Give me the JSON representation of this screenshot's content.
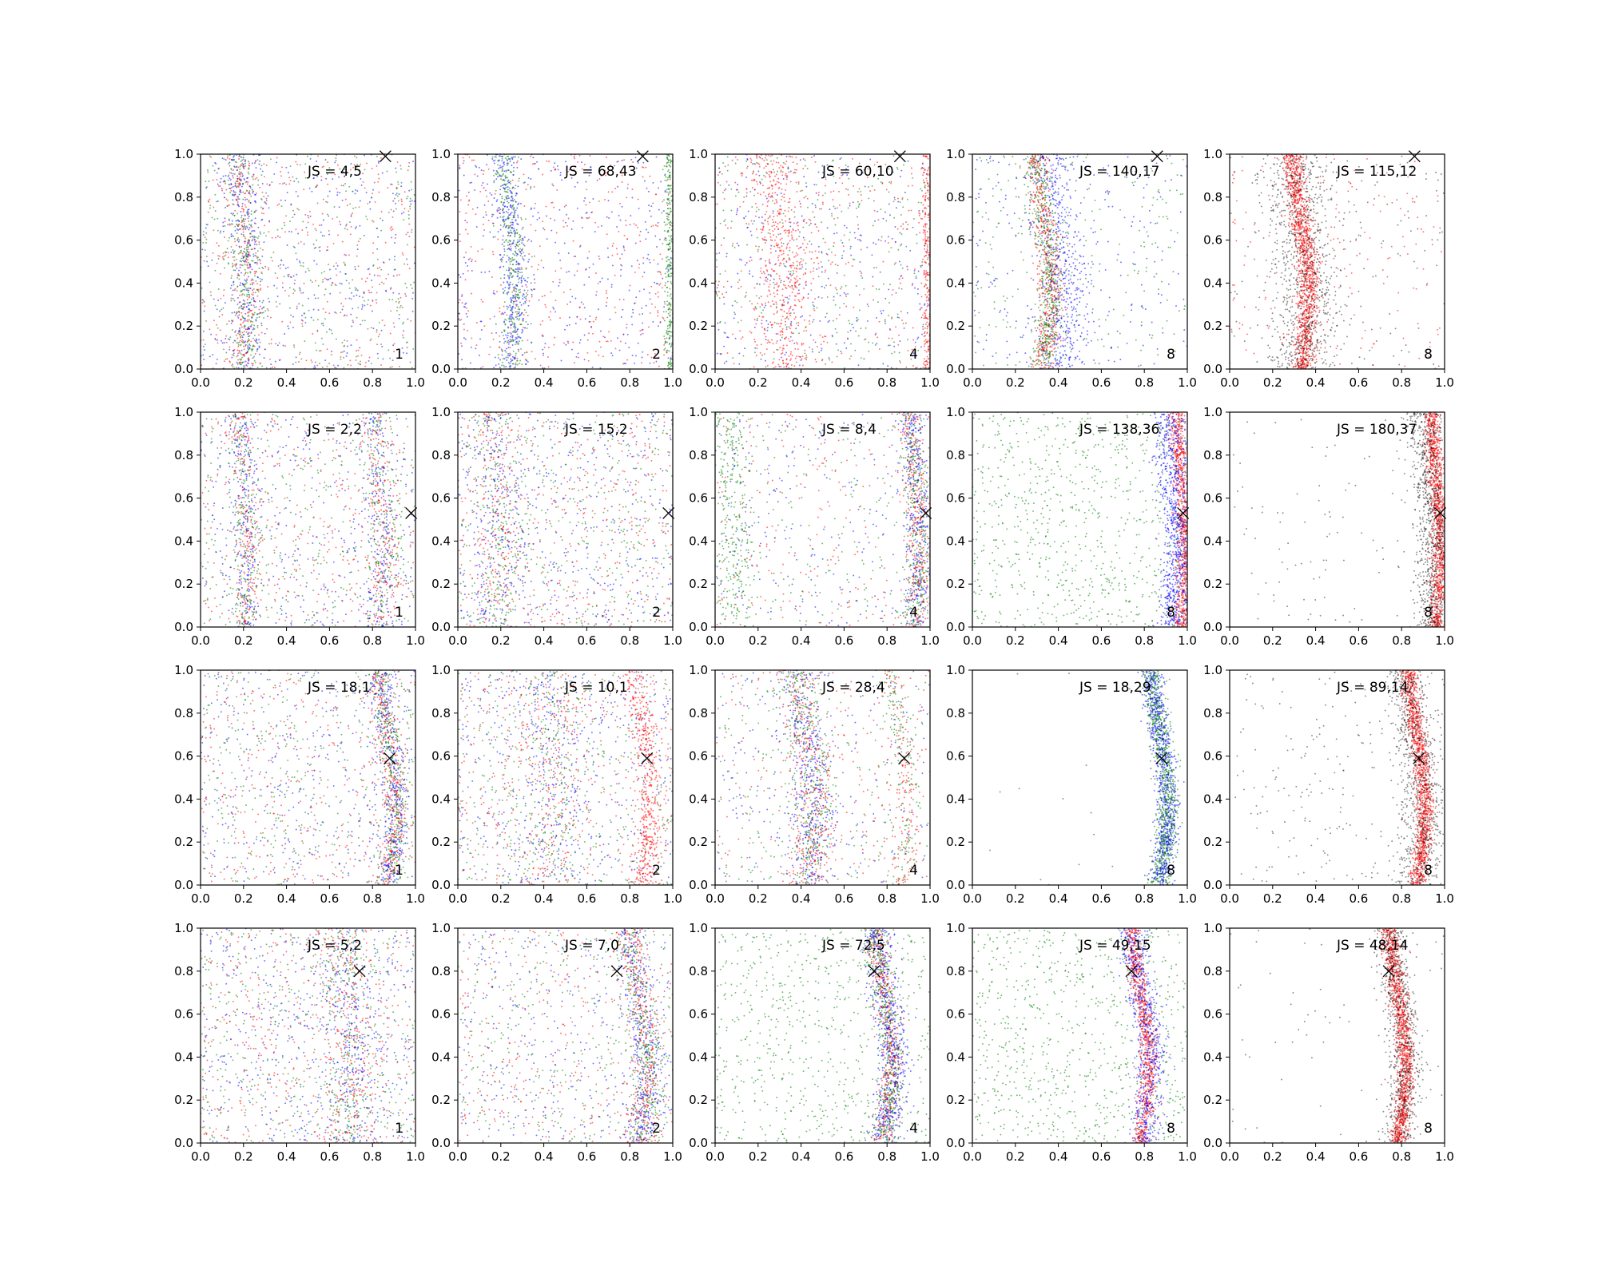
{
  "chart_data": {
    "type": "scatter",
    "rows": 4,
    "cols": 5,
    "xlim": [
      0,
      1
    ],
    "ylim": [
      0,
      1
    ],
    "xticks": [
      "0.0",
      "0.2",
      "0.4",
      "0.6",
      "0.8",
      "1.0"
    ],
    "yticks": [
      "0.0",
      "0.2",
      "0.4",
      "0.6",
      "0.8",
      "1.0"
    ],
    "grid": false,
    "colors": {
      "red": "#ff0000",
      "green": "#008000",
      "blue": "#0000ff",
      "black": "#000000"
    },
    "panels": [
      {
        "js": "JS = 4,5",
        "tag": "1",
        "marker": [
          0.86,
          0.99
        ],
        "bands": [
          {
            "cx": 0.2,
            "w": 0.04,
            "n": 800,
            "c": [
              "red",
              "green",
              "blue"
            ],
            "a": 0.02
          }
        ],
        "bg": [
          {
            "n": 1100,
            "c": [
              "red",
              "green",
              "blue"
            ]
          }
        ]
      },
      {
        "js": "JS = 68,43",
        "tag": "2",
        "marker": [
          0.86,
          0.99
        ],
        "bands": [
          {
            "cx": 0.24,
            "w": 0.03,
            "n": 700,
            "c": [
              "green",
              "blue"
            ],
            "a": 0.03
          },
          {
            "cx": 0.985,
            "w": 0.012,
            "n": 300,
            "c": [
              "green"
            ],
            "a": 0.0
          }
        ],
        "bg": [
          {
            "n": 800,
            "c": [
              "blue",
              "red"
            ]
          }
        ]
      },
      {
        "js": "JS = 60,10",
        "tag": "4",
        "marker": [
          0.86,
          0.99
        ],
        "bands": [
          {
            "cx": 0.3,
            "w": 0.06,
            "n": 500,
            "c": [
              "red"
            ],
            "a": 0.03
          },
          {
            "cx": 0.985,
            "w": 0.012,
            "n": 250,
            "c": [
              "red"
            ],
            "a": 0.0
          }
        ],
        "bg": [
          {
            "n": 1000,
            "c": [
              "blue",
              "green",
              "red"
            ]
          }
        ]
      },
      {
        "js": "JS = 140,17",
        "tag": "8",
        "marker": [
          0.86,
          0.99
        ],
        "bands": [
          {
            "cx": 0.33,
            "w": 0.03,
            "n": 1100,
            "c": [
              "red",
              "green"
            ],
            "a": 0.035
          },
          {
            "cx": 0.4,
            "w": 0.06,
            "n": 500,
            "c": [
              "blue"
            ],
            "a": 0.035
          }
        ],
        "bg": [
          {
            "n": 500,
            "c": [
              "blue",
              "green"
            ]
          }
        ]
      },
      {
        "js": "JS = 115,12",
        "tag": "8",
        "marker": [
          0.86,
          0.99
        ],
        "bands": [
          {
            "cx": 0.33,
            "w": 0.025,
            "n": 1300,
            "c": [
              "red"
            ],
            "a": 0.035
          },
          {
            "cx": 0.33,
            "w": 0.08,
            "n": 900,
            "c": [
              "black"
            ],
            "a": 0.035
          }
        ],
        "bg": [
          {
            "n": 350,
            "c": [
              "black",
              "red"
            ]
          }
        ]
      },
      {
        "js": "JS = 2,2",
        "tag": "1",
        "marker": [
          0.98,
          0.53
        ],
        "bands": [
          {
            "cx": 0.2,
            "w": 0.03,
            "n": 600,
            "c": [
              "red",
              "green",
              "blue"
            ],
            "a": 0.02
          },
          {
            "cx": 0.83,
            "w": 0.04,
            "n": 600,
            "c": [
              "red",
              "green",
              "blue"
            ],
            "a": 0.02
          }
        ],
        "bg": [
          {
            "n": 1100,
            "c": [
              "red",
              "green",
              "blue"
            ]
          }
        ]
      },
      {
        "js": "JS = 15,2",
        "tag": "2",
        "marker": [
          0.98,
          0.53
        ],
        "bands": [
          {
            "cx": 0.18,
            "w": 0.06,
            "n": 600,
            "c": [
              "red",
              "green",
              "blue"
            ],
            "a": 0.02
          }
        ],
        "bg": [
          {
            "n": 1300,
            "c": [
              "red",
              "green",
              "blue"
            ]
          }
        ]
      },
      {
        "js": "JS = 8,4",
        "tag": "4",
        "marker": [
          0.98,
          0.53
        ],
        "bands": [
          {
            "cx": 0.93,
            "w": 0.03,
            "n": 1000,
            "c": [
              "red",
              "blue",
              "green"
            ],
            "a": 0.02
          },
          {
            "cx": 0.08,
            "w": 0.04,
            "n": 300,
            "c": [
              "green"
            ],
            "a": 0.02
          }
        ],
        "bg": [
          {
            "n": 700,
            "c": [
              "blue",
              "green",
              "red"
            ]
          }
        ]
      },
      {
        "js": "JS = 138,36",
        "tag": "8",
        "marker": [
          0.98,
          0.53
        ],
        "bands": [
          {
            "cx": 0.97,
            "w": 0.02,
            "n": 900,
            "c": [
              "red"
            ],
            "a": 0.02
          },
          {
            "cx": 0.93,
            "w": 0.035,
            "n": 800,
            "c": [
              "blue"
            ],
            "a": 0.02
          }
        ],
        "bg": [
          {
            "n": 800,
            "c": [
              "green"
            ]
          }
        ]
      },
      {
        "js": "JS = 180,37",
        "tag": "8",
        "marker": [
          0.98,
          0.53
        ],
        "bands": [
          {
            "cx": 0.96,
            "w": 0.02,
            "n": 1200,
            "c": [
              "red"
            ],
            "a": 0.02
          },
          {
            "cx": 0.93,
            "w": 0.04,
            "n": 900,
            "c": [
              "black"
            ],
            "a": 0.02
          }
        ],
        "bg": [
          {
            "n": 120,
            "c": [
              "black"
            ]
          }
        ]
      },
      {
        "js": "JS = 18,1",
        "tag": "1",
        "marker": [
          0.88,
          0.59
        ],
        "bands": [
          {
            "cx": 0.87,
            "w": 0.03,
            "n": 1100,
            "c": [
              "green",
              "blue",
              "red"
            ],
            "a": 0.04
          }
        ],
        "bg": [
          {
            "n": 1100,
            "c": [
              "blue",
              "red",
              "green"
            ]
          }
        ]
      },
      {
        "js": "JS = 10,1",
        "tag": "2",
        "marker": [
          0.88,
          0.59
        ],
        "bands": [
          {
            "cx": 0.86,
            "w": 0.03,
            "n": 500,
            "c": [
              "red"
            ],
            "a": 0.04
          },
          {
            "cx": 0.42,
            "w": 0.08,
            "n": 500,
            "c": [
              "red",
              "green",
              "blue"
            ],
            "a": 0.02
          }
        ],
        "bg": [
          {
            "n": 1300,
            "c": [
              "red",
              "green",
              "blue"
            ]
          }
        ]
      },
      {
        "js": "JS = 28,4",
        "tag": "4",
        "marker": [
          0.88,
          0.59
        ],
        "bands": [
          {
            "cx": 0.42,
            "w": 0.05,
            "n": 1100,
            "c": [
              "red",
              "blue",
              "green"
            ],
            "a": 0.05
          },
          {
            "cx": 0.86,
            "w": 0.03,
            "n": 300,
            "c": [
              "red",
              "green"
            ],
            "a": 0.04
          }
        ],
        "bg": [
          {
            "n": 700,
            "c": [
              "blue",
              "red",
              "green"
            ]
          }
        ]
      },
      {
        "js": "JS = 18,29",
        "tag": "8",
        "marker": [
          0.88,
          0.59
        ],
        "bands": [
          {
            "cx": 0.87,
            "w": 0.025,
            "n": 1700,
            "c": [
              "green",
              "blue"
            ],
            "a": 0.04
          }
        ],
        "bg": [
          {
            "n": 15,
            "c": [
              "black"
            ]
          }
        ]
      },
      {
        "js": "JS = 89,14",
        "tag": "8",
        "marker": [
          0.88,
          0.59
        ],
        "bands": [
          {
            "cx": 0.87,
            "w": 0.02,
            "n": 1300,
            "c": [
              "red"
            ],
            "a": 0.04
          },
          {
            "cx": 0.86,
            "w": 0.05,
            "n": 800,
            "c": [
              "black"
            ],
            "a": 0.04
          }
        ],
        "bg": [
          {
            "n": 220,
            "c": [
              "black"
            ]
          }
        ]
      },
      {
        "js": "JS = 5,2",
        "tag": "1",
        "marker": [
          0.74,
          0.8
        ],
        "bands": [
          {
            "cx": 0.68,
            "w": 0.06,
            "n": 700,
            "c": [
              "blue",
              "green",
              "red"
            ],
            "a": 0.03
          }
        ],
        "bg": [
          {
            "n": 1400,
            "c": [
              "red",
              "green",
              "blue"
            ]
          }
        ]
      },
      {
        "js": "JS = 7,0",
        "tag": "2",
        "marker": [
          0.74,
          0.8
        ],
        "bands": [
          {
            "cx": 0.84,
            "w": 0.04,
            "n": 1100,
            "c": [
              "red",
              "green",
              "blue"
            ],
            "a": 0.04
          }
        ],
        "bg": [
          {
            "n": 1000,
            "c": [
              "red",
              "green",
              "blue"
            ]
          }
        ]
      },
      {
        "js": "JS = 72,5",
        "tag": "4",
        "marker": [
          0.74,
          0.8
        ],
        "bands": [
          {
            "cx": 0.78,
            "w": 0.025,
            "n": 900,
            "c": [
              "red",
              "green"
            ],
            "a": 0.04
          },
          {
            "cx": 0.79,
            "w": 0.04,
            "n": 600,
            "c": [
              "blue"
            ],
            "a": 0.04
          }
        ],
        "bg": [
          {
            "n": 700,
            "c": [
              "green"
            ]
          }
        ]
      },
      {
        "js": "JS = 49,15",
        "tag": "8",
        "marker": [
          0.74,
          0.8
        ],
        "bands": [
          {
            "cx": 0.78,
            "w": 0.02,
            "n": 900,
            "c": [
              "red"
            ],
            "a": 0.04
          },
          {
            "cx": 0.79,
            "w": 0.035,
            "n": 700,
            "c": [
              "blue"
            ],
            "a": 0.04
          }
        ],
        "bg": [
          {
            "n": 800,
            "c": [
              "green"
            ]
          }
        ]
      },
      {
        "js": "JS = 48,14",
        "tag": "8",
        "marker": [
          0.74,
          0.8
        ],
        "bands": [
          {
            "cx": 0.78,
            "w": 0.02,
            "n": 1300,
            "c": [
              "red"
            ],
            "a": 0.04
          },
          {
            "cx": 0.78,
            "w": 0.04,
            "n": 800,
            "c": [
              "black"
            ],
            "a": 0.04
          }
        ],
        "bg": [
          {
            "n": 60,
            "c": [
              "black"
            ]
          }
        ]
      }
    ]
  }
}
